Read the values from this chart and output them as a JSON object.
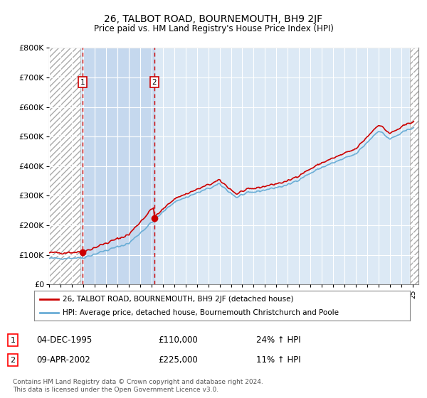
{
  "title": "26, TALBOT ROAD, BOURNEMOUTH, BH9 2JF",
  "subtitle": "Price paid vs. HM Land Registry's House Price Index (HPI)",
  "ylim": [
    0,
    800000
  ],
  "yticks": [
    0,
    100000,
    200000,
    300000,
    400000,
    500000,
    600000,
    700000,
    800000
  ],
  "ytick_labels": [
    "£0",
    "£100K",
    "£200K",
    "£300K",
    "£400K",
    "£500K",
    "£600K",
    "£700K",
    "£800K"
  ],
  "xlim_start": 1993.0,
  "xlim_end": 2025.5,
  "hpi_color": "#6baed6",
  "price_color": "#cc0000",
  "purchase1_date": 1995.92,
  "purchase1_price": 110000,
  "purchase2_date": 2002.27,
  "purchase2_price": 225000,
  "legend_line1": "26, TALBOT ROAD, BOURNEMOUTH, BH9 2JF (detached house)",
  "legend_line2": "HPI: Average price, detached house, Bournemouth Christchurch and Poole",
  "annot1_date": "04-DEC-1995",
  "annot1_price": "£110,000",
  "annot1_hpi": "24% ↑ HPI",
  "annot2_date": "09-APR-2002",
  "annot2_price": "£225,000",
  "annot2_hpi": "11% ↑ HPI",
  "footer": "Contains HM Land Registry data © Crown copyright and database right 2024.\nThis data is licensed under the Open Government Licence v3.0.",
  "bg_color": "#ffffff",
  "plot_bg_color": "#dce9f5",
  "hatch_bg_color": "#c8c8c8",
  "between_purchase_color": "#c5d8ee",
  "grid_color": "#ffffff",
  "hatch_end1": 1995.75,
  "hatch_start2": 2024.75
}
